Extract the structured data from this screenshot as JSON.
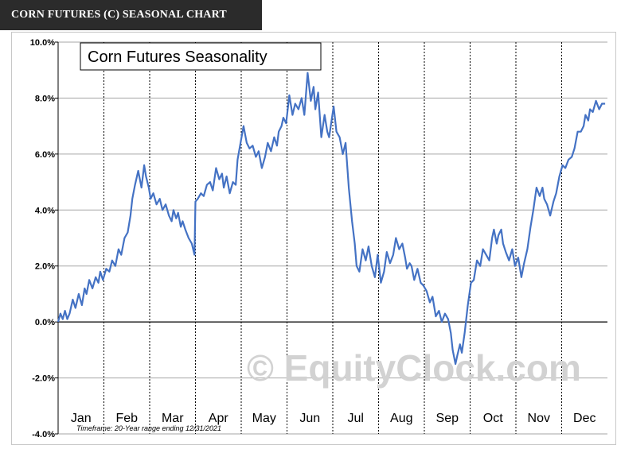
{
  "header": {
    "title": "CORN FUTURES (C) SEASONAL CHART"
  },
  "watermark": "© EquityClock.com",
  "colors": {
    "line": "#4472c4",
    "grid": "#a6a6a6",
    "header_bg": "#2b2b2b"
  },
  "chart_data": {
    "type": "line",
    "title": "Corn Futures Seasonality",
    "footnote": "Timeframe: 20-Year range ending 12/31/2021",
    "ylim": [
      -4,
      10
    ],
    "yticks": [
      -4,
      -2,
      0,
      2,
      4,
      6,
      8,
      10
    ],
    "ytick_labels": [
      "-4.0%",
      "-2.0%",
      "0.0%",
      "2.0%",
      "4.0%",
      "6.0%",
      "8.0%",
      "10.0%"
    ],
    "x_range_months": [
      0,
      12
    ],
    "categories": [
      "Jan",
      "Feb",
      "Mar",
      "Apr",
      "May",
      "Jun",
      "Jul",
      "Aug",
      "Sep",
      "Oct",
      "Nov",
      "Dec"
    ],
    "grid": true,
    "series": [
      {
        "x": [
          0.0,
          0.05,
          0.1,
          0.15,
          0.2,
          0.25,
          0.32,
          0.38,
          0.45,
          0.52,
          0.58,
          0.62,
          0.68,
          0.75,
          0.82,
          0.88,
          0.92,
          0.98,
          1.05,
          1.12,
          1.18,
          1.25,
          1.32,
          1.38,
          1.45,
          1.52,
          1.58,
          1.62,
          1.68,
          1.75,
          1.82,
          1.88,
          1.92,
          1.98,
          2.02,
          2.08,
          2.15,
          2.22,
          2.28,
          2.35,
          2.42,
          2.48,
          2.52,
          2.58,
          2.62,
          2.68,
          2.72,
          2.78,
          2.85,
          2.92,
          2.98,
          3.0,
          3.05,
          3.12,
          3.18,
          3.25,
          3.32,
          3.38,
          3.45,
          3.52,
          3.58,
          3.62,
          3.68,
          3.75,
          3.82,
          3.88,
          3.92,
          4.05,
          4.12,
          4.18,
          4.25,
          4.32,
          4.38,
          4.45,
          4.52,
          4.58,
          4.65,
          4.72,
          4.78,
          4.82,
          4.88,
          4.92,
          4.98,
          5.05,
          5.12,
          5.18,
          5.25,
          5.32,
          5.38,
          5.45,
          5.52,
          5.58,
          5.62,
          5.68,
          5.75,
          5.82,
          5.88,
          5.92,
          6.02,
          6.08,
          6.15,
          6.22,
          6.28,
          6.35,
          6.42,
          6.48,
          6.52,
          6.58,
          6.65,
          6.72,
          6.78,
          6.85,
          6.92,
          6.98,
          7.05,
          7.12,
          7.18,
          7.25,
          7.32,
          7.38,
          7.45,
          7.52,
          7.58,
          7.62,
          7.68,
          7.72,
          7.78,
          7.85,
          7.92,
          7.98,
          8.05,
          8.12,
          8.18,
          8.25,
          8.32,
          8.38,
          8.45,
          8.52,
          8.58,
          8.62,
          8.68,
          8.72,
          8.78,
          8.82,
          8.88,
          8.95,
          9.02,
          9.08,
          9.15,
          9.22,
          9.28,
          9.35,
          9.42,
          9.48,
          9.52,
          9.58,
          9.62,
          9.68,
          9.72,
          9.78,
          9.85,
          9.92,
          9.98,
          10.05,
          10.12,
          10.18,
          10.25,
          10.32,
          10.38,
          10.45,
          10.52,
          10.58,
          10.62,
          10.68,
          10.75,
          10.82,
          10.88,
          10.95,
          11.02,
          11.08,
          11.15,
          11.22,
          11.28,
          11.35,
          11.42,
          11.48,
          11.52,
          11.58,
          11.62,
          11.68,
          11.75,
          11.82,
          11.88,
          11.95
        ],
        "values": [
          0.0,
          0.3,
          0.1,
          0.4,
          0.1,
          0.3,
          0.8,
          0.5,
          1.0,
          0.6,
          1.2,
          1.0,
          1.5,
          1.2,
          1.6,
          1.4,
          1.8,
          1.5,
          1.9,
          1.8,
          2.2,
          2.0,
          2.6,
          2.4,
          3.0,
          3.2,
          3.8,
          4.4,
          4.9,
          5.4,
          4.8,
          5.6,
          5.2,
          4.8,
          4.4,
          4.6,
          4.2,
          4.4,
          4.0,
          4.2,
          3.8,
          3.6,
          4.0,
          3.7,
          3.9,
          3.4,
          3.6,
          3.3,
          3.0,
          2.8,
          2.4,
          4.3,
          4.4,
          4.6,
          4.5,
          4.9,
          5.0,
          4.7,
          5.5,
          5.1,
          5.3,
          4.8,
          5.2,
          4.6,
          5.0,
          4.9,
          5.8,
          7.0,
          6.4,
          6.2,
          6.3,
          5.9,
          6.1,
          5.5,
          5.9,
          6.4,
          6.1,
          6.6,
          6.3,
          6.8,
          7.0,
          7.3,
          7.1,
          8.1,
          7.4,
          7.8,
          7.6,
          8.0,
          7.4,
          8.9,
          7.9,
          8.4,
          7.6,
          8.2,
          6.6,
          7.4,
          6.8,
          6.6,
          7.7,
          6.8,
          6.6,
          6.0,
          6.4,
          4.8,
          3.6,
          2.8,
          2.0,
          1.8,
          2.6,
          2.2,
          2.7,
          2.0,
          1.6,
          2.4,
          1.4,
          1.8,
          2.5,
          2.1,
          2.4,
          3.0,
          2.6,
          2.8,
          2.3,
          1.9,
          2.1,
          2.0,
          1.5,
          1.9,
          1.4,
          1.3,
          1.1,
          0.7,
          0.9,
          0.2,
          0.4,
          0.0,
          0.3,
          0.1,
          -0.4,
          -1.0,
          -1.5,
          -1.2,
          -0.8,
          -1.1,
          -0.4,
          0.6,
          1.4,
          1.5,
          2.2,
          2.0,
          2.6,
          2.4,
          2.2,
          3.0,
          3.3,
          2.8,
          3.1,
          3.3,
          2.8,
          2.5,
          2.2,
          2.6,
          2.0,
          2.3,
          1.6,
          2.1,
          2.6,
          3.4,
          4.0,
          4.8,
          4.5,
          4.8,
          4.4,
          4.2,
          3.8,
          4.3,
          4.6,
          5.2,
          5.6,
          5.5,
          5.8,
          5.9,
          6.2,
          6.8,
          6.8,
          7.0,
          7.4,
          7.2,
          7.6,
          7.5,
          7.9,
          7.6,
          7.8,
          7.8
        ],
        "color": "#4472c4"
      }
    ]
  }
}
